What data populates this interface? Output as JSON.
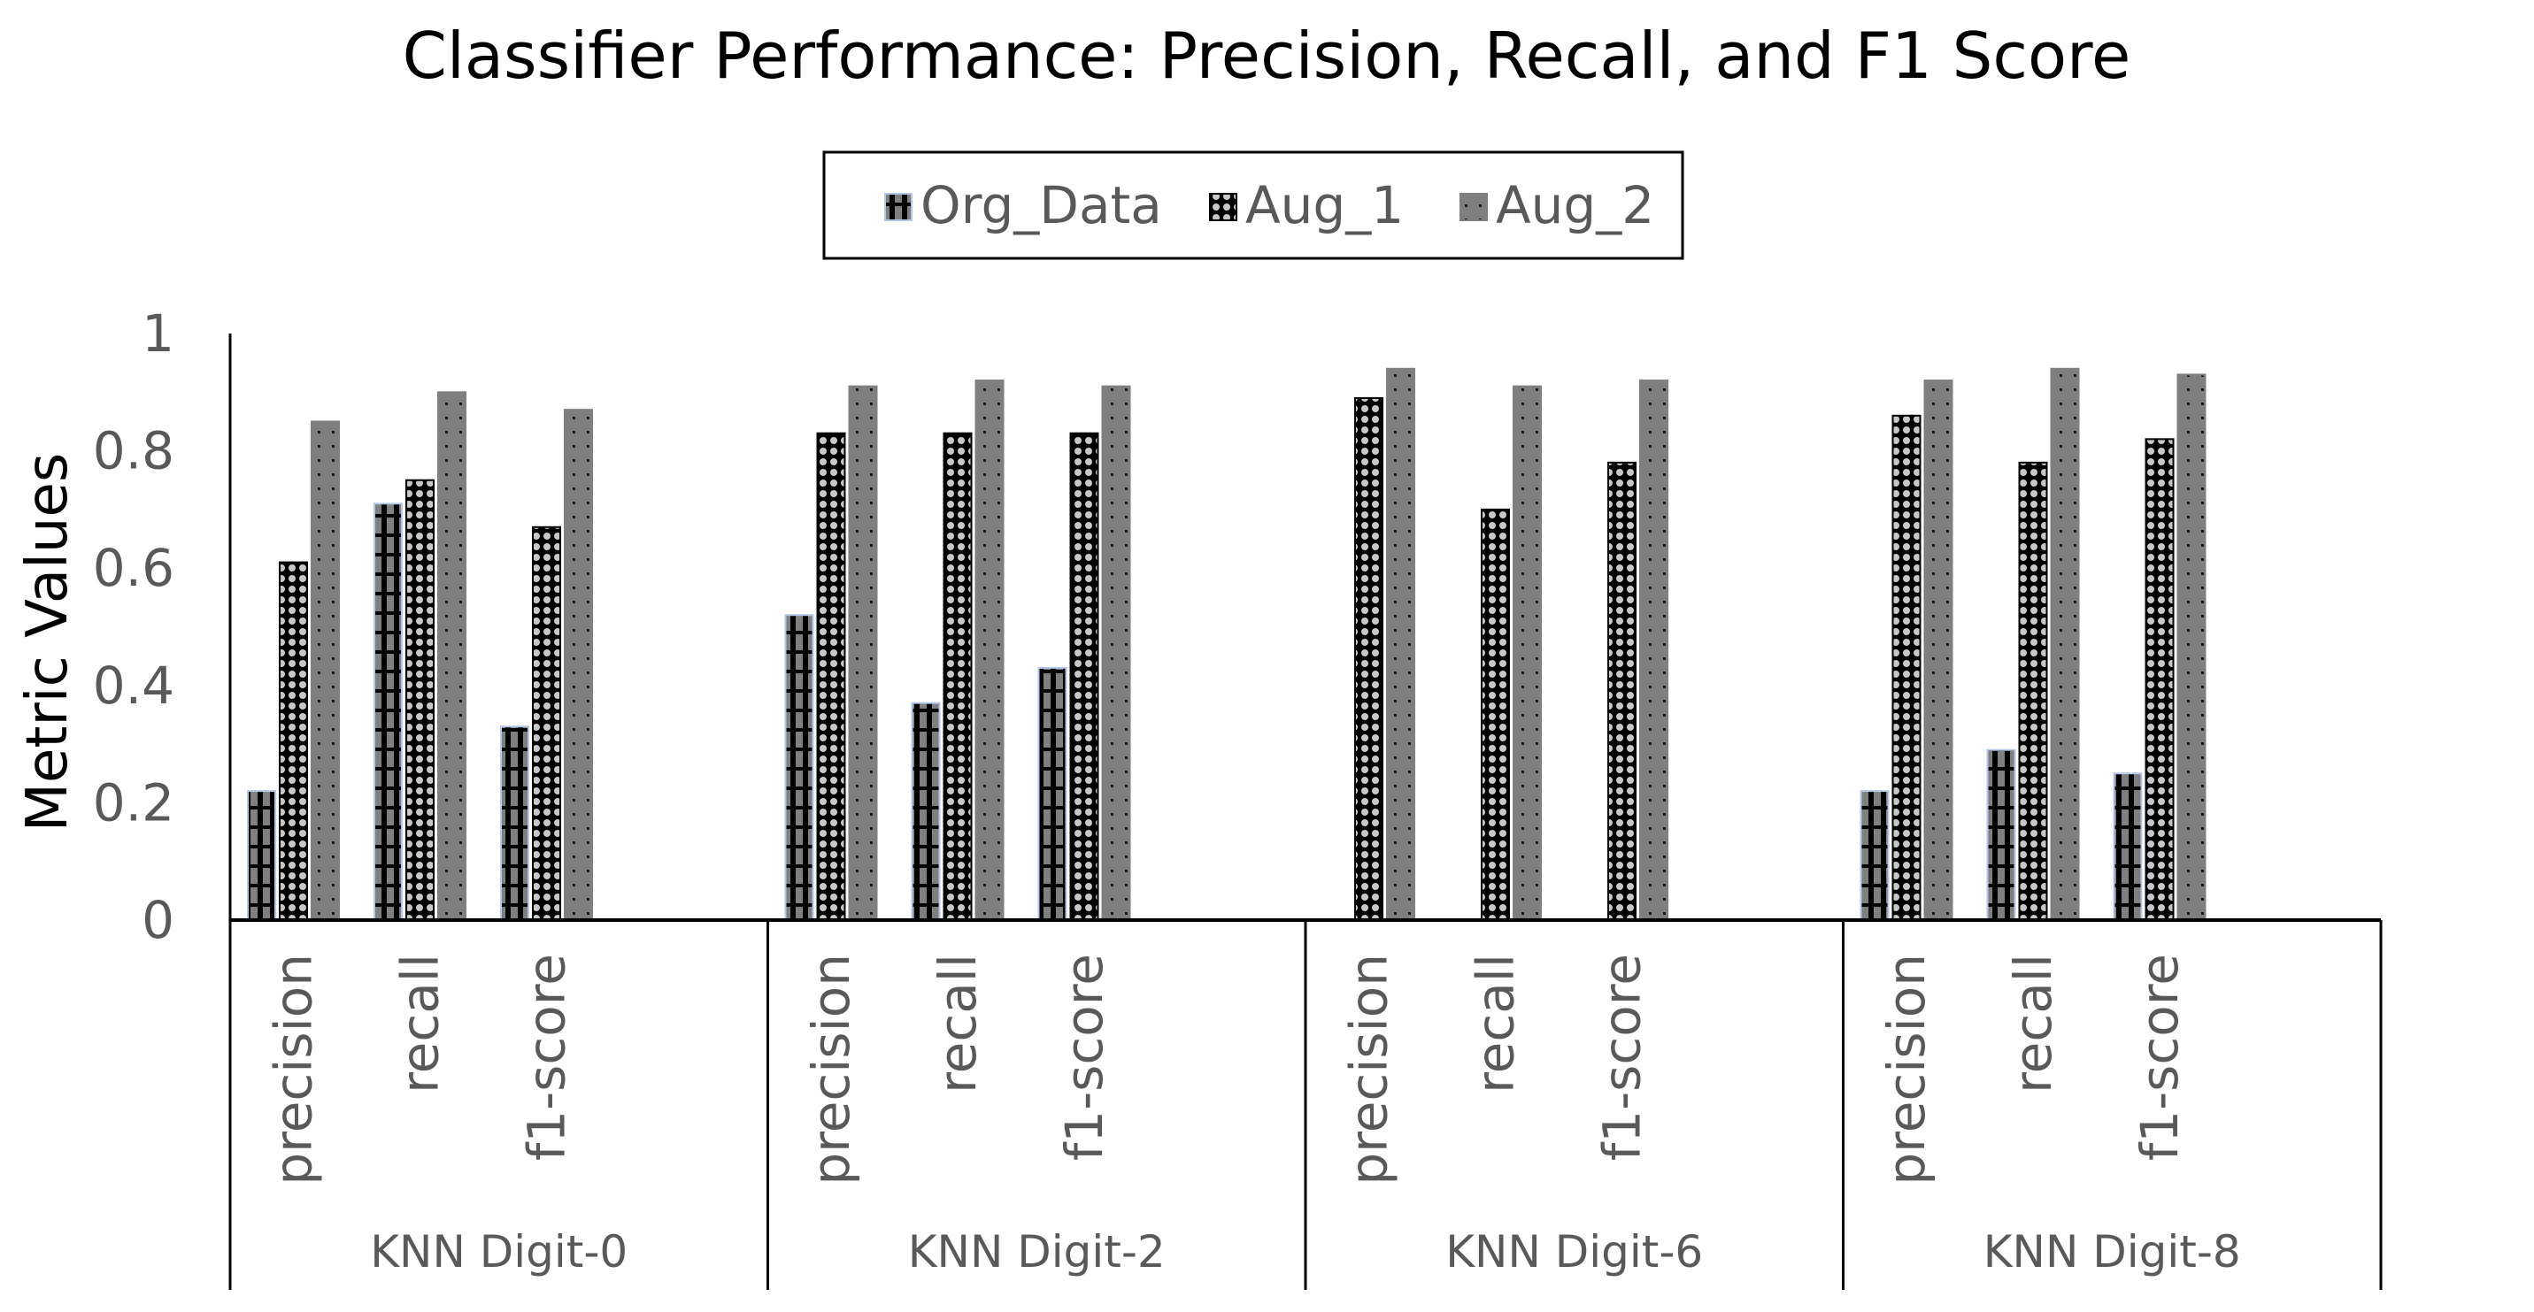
{
  "chart_data": {
    "type": "bar",
    "title": "Classifier Performance: Precision, Recall, and F1 Score",
    "ylabel": "Metric Values",
    "xlabel": "",
    "ylim": [
      0,
      1
    ],
    "yticks": [
      0,
      0.2,
      0.4,
      0.6,
      0.8,
      1
    ],
    "ytick_labels": [
      "0",
      "0.2",
      "0.4",
      "0.6",
      "0.8",
      "1"
    ],
    "legend_position": "top-center",
    "grid": false,
    "groups": [
      "KNN Digit-0",
      "KNN Digit-2",
      "KNN Digit-6",
      "KNN Digit-8"
    ],
    "metrics": [
      "precision",
      "recall",
      "f1-score"
    ],
    "series": [
      {
        "name": "Org_Data",
        "color": "#7f7f7f",
        "edge": "#b4c7e7",
        "pattern": "ladder",
        "values": [
          [
            0.22,
            0.71,
            0.33
          ],
          [
            0.52,
            0.37,
            0.43
          ],
          [
            0,
            0,
            0
          ],
          [
            0.22,
            0.29,
            0.25
          ]
        ]
      },
      {
        "name": "Aug_1",
        "color": "#000000",
        "edge": "#000000",
        "pattern": "checker",
        "values": [
          [
            0.61,
            0.75,
            0.67
          ],
          [
            0.83,
            0.83,
            0.83
          ],
          [
            0.89,
            0.7,
            0.78
          ],
          [
            0.86,
            0.78,
            0.82
          ]
        ]
      },
      {
        "name": "Aug_2",
        "color": "#7f7f7f",
        "edge": "#7f7f7f",
        "pattern": "dots",
        "values": [
          [
            0.85,
            0.9,
            0.87
          ],
          [
            0.91,
            0.92,
            0.91
          ],
          [
            0.94,
            0.91,
            0.92
          ],
          [
            0.92,
            0.94,
            0.93
          ]
        ]
      }
    ]
  }
}
